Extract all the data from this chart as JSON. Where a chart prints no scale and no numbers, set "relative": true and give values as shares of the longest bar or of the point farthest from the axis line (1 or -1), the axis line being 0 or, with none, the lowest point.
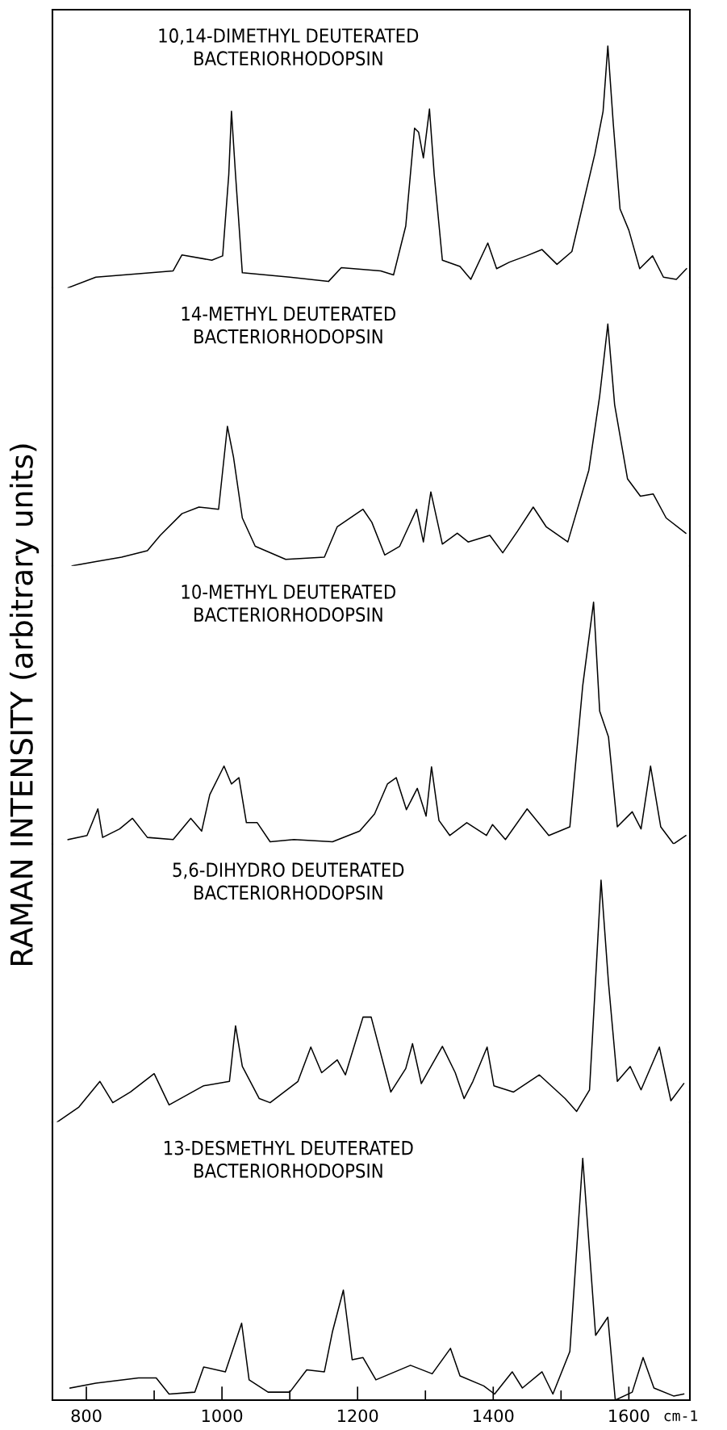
{
  "chart_data": [
    {
      "type": "line",
      "title": "10,14-DIMETHYL DEUTERATED\nBACTERIORHODOPSIN",
      "relative": true,
      "xlim": [
        750,
        1690
      ],
      "tick_labels": false,
      "x": [
        773,
        814,
        877,
        928,
        941,
        985,
        1001,
        1010,
        1014,
        1020,
        1030,
        1100,
        1157,
        1176,
        1234,
        1253,
        1271,
        1284,
        1290,
        1297,
        1306,
        1313,
        1325,
        1351,
        1367,
        1392,
        1405,
        1424,
        1449,
        1472,
        1494,
        1516,
        1550,
        1562,
        1569,
        1577,
        1587,
        1600,
        1616,
        1635,
        1651,
        1670,
        1685
      ],
      "series": [
        {
          "color": "#000000",
          "values": [
            0,
            0.044,
            0.058,
            0.07,
            0.136,
            0.114,
            0.132,
            0.467,
            0.73,
            0.467,
            0.062,
            0.044,
            0.026,
            0.083,
            0.07,
            0.053,
            0.255,
            0.66,
            0.643,
            0.537,
            0.739,
            0.467,
            0.114,
            0.088,
            0.035,
            0.185,
            0.079,
            0.106,
            0.132,
            0.158,
            0.097,
            0.15,
            0.555,
            0.73,
            1,
            0.68,
            0.326,
            0.238,
            0.079,
            0.132,
            0.044,
            0.035,
            0.079
          ]
        }
      ]
    },
    {
      "type": "line",
      "title": "14-METHYL DEUTERATED\nBACTERIORHODOPSIN",
      "relative": true,
      "xlim": [
        750,
        1690
      ],
      "tick_labels": false,
      "x": [
        779,
        814,
        852,
        890,
        909,
        941,
        966,
        995,
        1008,
        1017,
        1030,
        1049,
        1094,
        1151,
        1170,
        1208,
        1221,
        1240,
        1262,
        1287,
        1297,
        1308,
        1325,
        1347,
        1363,
        1395,
        1414,
        1436,
        1459,
        1478,
        1510,
        1541,
        1557,
        1569,
        1579,
        1598,
        1617,
        1636,
        1655,
        1684
      ],
      "series": [
        {
          "color": "#000000",
          "values": [
            0,
            0.018,
            0.036,
            0.063,
            0.126,
            0.216,
            0.243,
            0.234,
            0.577,
            0.45,
            0.198,
            0.081,
            0.027,
            0.036,
            0.162,
            0.234,
            0.18,
            0.045,
            0.081,
            0.234,
            0.099,
            0.306,
            0.09,
            0.135,
            0.099,
            0.126,
            0.054,
            0.144,
            0.243,
            0.162,
            0.099,
            0.396,
            0.703,
            1,
            0.667,
            0.36,
            0.288,
            0.297,
            0.198,
            0.135
          ]
        }
      ]
    },
    {
      "type": "line",
      "title": "10-METHYL DEUTERATED\nBACTERIORHODOPSIN",
      "ylabel": "RAMAN INTENSITY (arbitrary units)",
      "relative": true,
      "xlim": [
        750,
        1690
      ],
      "tick_labels": false,
      "x": [
        773,
        801,
        817,
        824,
        849,
        868,
        890,
        928,
        954,
        970,
        982,
        1003,
        1014,
        1025,
        1036,
        1052,
        1071,
        1106,
        1163,
        1203,
        1225,
        1244,
        1257,
        1272,
        1288,
        1301,
        1309,
        1320,
        1336,
        1361,
        1390,
        1399,
        1418,
        1450,
        1482,
        1513,
        1532,
        1548,
        1557,
        1570,
        1583,
        1605,
        1618,
        1632,
        1647,
        1666,
        1684
      ],
      "series": [
        {
          "color": "#000000",
          "values": [
            0.018,
            0.035,
            0.145,
            0.027,
            0.062,
            0.106,
            0.027,
            0.018,
            0.106,
            0.053,
            0.204,
            0.322,
            0.248,
            0.274,
            0.088,
            0.088,
            0.009,
            0.018,
            0.009,
            0.053,
            0.124,
            0.248,
            0.274,
            0.142,
            0.23,
            0.115,
            0.319,
            0.097,
            0.035,
            0.088,
            0.035,
            0.08,
            0.018,
            0.145,
            0.035,
            0.071,
            0.655,
            1,
            0.549,
            0.442,
            0.071,
            0.133,
            0.062,
            0.322,
            0.071,
            0,
            0.035
          ]
        }
      ]
    },
    {
      "type": "line",
      "title": "5,6-DIHYDRO DEUTERATED\nBACTERIORHODOPSIN",
      "relative": true,
      "xlim": [
        750,
        1690
      ],
      "tick_labels": false,
      "x": [
        757,
        789,
        820,
        839,
        865,
        900,
        922,
        973,
        1011,
        1020,
        1030,
        1055,
        1071,
        1112,
        1131,
        1147,
        1170,
        1182,
        1208,
        1220,
        1249,
        1271,
        1281,
        1294,
        1325,
        1344,
        1357,
        1370,
        1391,
        1401,
        1430,
        1468,
        1506,
        1523,
        1542,
        1550,
        1559,
        1570,
        1583,
        1602,
        1618,
        1645,
        1662,
        1681
      ],
      "series": [
        {
          "color": "#000000",
          "values": [
            0,
            0.062,
            0.168,
            0.08,
            0.124,
            0.2,
            0.071,
            0.15,
            0.168,
            0.398,
            0.23,
            0.097,
            0.08,
            0.168,
            0.31,
            0.204,
            0.257,
            0.195,
            0.434,
            0.434,
            0.124,
            0.221,
            0.324,
            0.159,
            0.313,
            0.204,
            0.097,
            0.168,
            0.31,
            0.15,
            0.124,
            0.195,
            0.097,
            0.044,
            0.133,
            0.54,
            1,
            0.575,
            0.168,
            0.23,
            0.133,
            0.31,
            0.088,
            0.159
          ]
        }
      ]
    },
    {
      "type": "line",
      "title": "13-DESMETHYL DEUTERATED\nBACTERIORHODOPSIN",
      "xlabel": "cm-1",
      "relative": true,
      "xlim": [
        750,
        1690
      ],
      "xticks": [
        800,
        {
          "value": 900,
          "label": null
        },
        1000,
        {
          "value": 1100,
          "label": null
        },
        1200,
        {
          "value": 1300,
          "label": null
        },
        1400,
        {
          "value": 1500,
          "label": null
        },
        1600
      ],
      "tick_labels": "x",
      "x": [
        776,
        814,
        877,
        903,
        922,
        960,
        973,
        1005,
        1029,
        1040,
        1068,
        1100,
        1125,
        1151,
        1163,
        1179,
        1192,
        1208,
        1227,
        1278,
        1310,
        1337,
        1351,
        1386,
        1402,
        1428,
        1443,
        1472,
        1488,
        1513,
        1532,
        1551,
        1569,
        1580,
        1605,
        1621,
        1637,
        1666,
        1681
      ],
      "series": [
        {
          "color": "#000000",
          "values": [
            0.05,
            0.07,
            0.092,
            0.092,
            0.025,
            0.033,
            0.137,
            0.117,
            0.318,
            0.084,
            0.033,
            0.033,
            0.125,
            0.117,
            0.284,
            0.455,
            0.167,
            0.176,
            0.084,
            0.144,
            0.109,
            0.214,
            0.1,
            0.059,
            0.025,
            0.117,
            0.05,
            0.117,
            0.025,
            0.201,
            1,
            0.268,
            0.343,
            0,
            0.033,
            0.176,
            0.05,
            0.017,
            0.025
          ]
        }
      ]
    }
  ]
}
